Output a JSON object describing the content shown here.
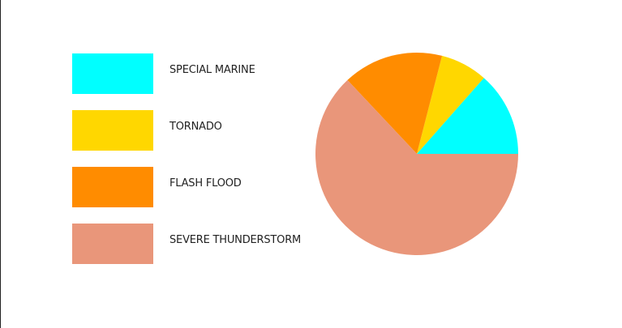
{
  "chart_data": {
    "type": "pie",
    "title": "",
    "legend_position": "left",
    "categories": [
      "SPECIAL MARINE",
      "TORNADO",
      "FLASH FLOOD",
      "SEVERE THUNDERSTORM"
    ],
    "values": [
      13.5,
      7.5,
      16,
      63
    ],
    "colors": [
      "#00ffff",
      "#ffd700",
      "#ff8c00",
      "#e9967a"
    ],
    "start_angle_deg": 0,
    "direction": "counterclockwise"
  }
}
